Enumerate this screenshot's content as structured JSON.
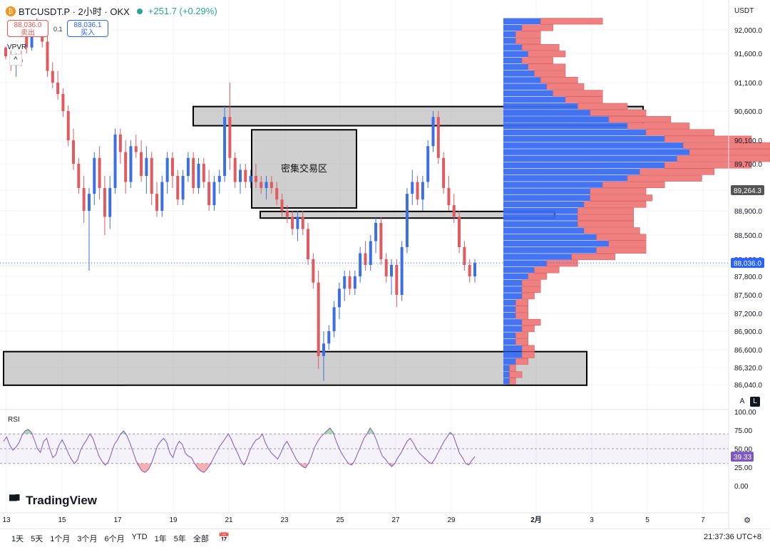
{
  "header": {
    "symbol": "BTCUSDT.P · 2小时 · OKX",
    "change": "+251.7 (+0.29%)",
    "sell_price": "88,036.0",
    "sell_label": "卖出",
    "buy_price": "88,036.1",
    "buy_label": "买入",
    "spread": "0.1",
    "indicator": "VPVR"
  },
  "axis": {
    "currency": "USDT",
    "auto_btn": "A",
    "log_btn": "L"
  },
  "bottom": {
    "ranges": [
      "1天",
      "5天",
      "1个月",
      "3个月",
      "6个月",
      "YTD",
      "1年",
      "5年",
      "全部"
    ],
    "time": "21:37:36 UTC+8"
  },
  "brand": "TradingView",
  "chart_data": {
    "type": "candlestick",
    "price_ticks": [
      92000,
      91600,
      91100,
      90600,
      90100,
      89700,
      89264.3,
      88900,
      88500,
      88100,
      87800,
      87500,
      87200,
      86900,
      86600,
      86320,
      86040
    ],
    "price_tick_labels": [
      "92,000.0",
      "91,600.0",
      "91,100.0",
      "90,600.0",
      "90,100.0",
      "89,700.0",
      "89,264.3",
      "88,900.0",
      "88,500.0",
      "88,100.0",
      "87,800.0",
      "87,500.0",
      "87,200.0",
      "86,900.0",
      "86,600.0",
      "86,320.0",
      "86,040.0"
    ],
    "current_price": 88036.0,
    "current_price_label": "88,036.0",
    "poc_price": 89264.3,
    "poc_label": "89,264.3",
    "x_labels": [
      "13",
      "15",
      "17",
      "19",
      "21",
      "23",
      "25",
      "27",
      "29",
      "2月",
      "3",
      "5",
      "7"
    ],
    "zones": [
      {
        "from": 90350,
        "to": 90680,
        "label": ""
      },
      {
        "from": 88950,
        "to": 90280,
        "label": "密集交易区"
      },
      {
        "from": 88780,
        "to": 88890,
        "label": ""
      },
      {
        "from": 86030,
        "to": 86570,
        "label": ""
      }
    ],
    "candles": [
      [
        91700,
        91720,
        91500,
        91550
      ],
      [
        91550,
        91650,
        91300,
        91400
      ],
      [
        91400,
        91600,
        91200,
        91500
      ],
      [
        91500,
        91650,
        91380,
        91450
      ],
      [
        92050,
        92070,
        91600,
        91700
      ],
      [
        91700,
        92100,
        91650,
        92000
      ],
      [
        92000,
        92200,
        91900,
        92100
      ],
      [
        92100,
        92150,
        91700,
        91800
      ],
      [
        91800,
        91900,
        91200,
        91300
      ],
      [
        91300,
        91450,
        91000,
        91100
      ],
      [
        91100,
        91300,
        90800,
        90900
      ],
      [
        90900,
        91000,
        90500,
        90600
      ],
      [
        90600,
        90700,
        90000,
        90100
      ],
      [
        90100,
        90300,
        89600,
        89700
      ],
      [
        89700,
        89800,
        89200,
        89300
      ],
      [
        89300,
        89500,
        88700,
        88900
      ],
      [
        88900,
        89300,
        87900,
        89200
      ],
      [
        89200,
        89900,
        89000,
        89800
      ],
      [
        89800,
        90000,
        89100,
        89300
      ],
      [
        89300,
        89500,
        88500,
        88800
      ],
      [
        88800,
        89500,
        88600,
        89300
      ],
      [
        89300,
        90300,
        89200,
        90200
      ],
      [
        90200,
        90300,
        89700,
        89900
      ],
      [
        89900,
        90100,
        89200,
        89400
      ],
      [
        89400,
        90100,
        89300,
        90000
      ],
      [
        90000,
        90200,
        89800,
        89900
      ],
      [
        89900,
        90100,
        89400,
        89500
      ],
      [
        89500,
        90000,
        89200,
        89800
      ],
      [
        89800,
        89900,
        89000,
        89200
      ],
      [
        89200,
        89400,
        88800,
        88900
      ],
      [
        88900,
        89500,
        88800,
        89400
      ],
      [
        89400,
        89900,
        89200,
        89800
      ],
      [
        89800,
        89900,
        89300,
        89500
      ],
      [
        89500,
        89600,
        89000,
        89100
      ],
      [
        89100,
        89600,
        89000,
        89500
      ],
      [
        89500,
        89900,
        89400,
        89800
      ],
      [
        89800,
        89900,
        89200,
        89300
      ],
      [
        89300,
        89800,
        89200,
        89700
      ],
      [
        89700,
        89800,
        89300,
        89400
      ],
      [
        89400,
        89600,
        88900,
        89000
      ],
      [
        89000,
        89500,
        88900,
        89400
      ],
      [
        89400,
        89600,
        89200,
        89500
      ],
      [
        89500,
        90700,
        89400,
        90500
      ],
      [
        90500,
        91100,
        89600,
        89800
      ],
      [
        89800,
        89900,
        89300,
        89400
      ],
      [
        89400,
        89700,
        89200,
        89600
      ],
      [
        89600,
        89700,
        89300,
        89400
      ],
      [
        89400,
        89600,
        89300,
        89500
      ],
      [
        89500,
        89700,
        89300,
        89400
      ],
      [
        89400,
        89500,
        89200,
        89300
      ],
      [
        89300,
        89500,
        89100,
        89400
      ],
      [
        89400,
        89500,
        89200,
        89300
      ],
      [
        89300,
        89400,
        89000,
        89100
      ],
      [
        89100,
        89200,
        88800,
        88900
      ],
      [
        88900,
        89000,
        88700,
        88800
      ],
      [
        88800,
        88900,
        88500,
        88600
      ],
      [
        88600,
        88900,
        88400,
        88800
      ],
      [
        88800,
        88900,
        88500,
        88600
      ],
      [
        88600,
        88700,
        88000,
        88100
      ],
      [
        88100,
        88200,
        87600,
        87700
      ],
      [
        87700,
        87900,
        86300,
        86500
      ],
      [
        86500,
        86900,
        86100,
        86700
      ],
      [
        86700,
        87000,
        86600,
        86900
      ],
      [
        86900,
        87400,
        86800,
        87300
      ],
      [
        87300,
        87700,
        87100,
        87600
      ],
      [
        87600,
        87900,
        87400,
        87800
      ],
      [
        87800,
        87900,
        87500,
        87600
      ],
      [
        87600,
        87900,
        87500,
        87800
      ],
      [
        87800,
        88300,
        87700,
        88200
      ],
      [
        88200,
        88400,
        87900,
        88000
      ],
      [
        88000,
        88500,
        87900,
        88400
      ],
      [
        88400,
        88800,
        88200,
        88700
      ],
      [
        88700,
        88800,
        88000,
        88100
      ],
      [
        88100,
        88200,
        87700,
        87800
      ],
      [
        87800,
        88100,
        87500,
        88000
      ],
      [
        88000,
        88100,
        87300,
        87500
      ],
      [
        87500,
        88400,
        87400,
        88300
      ],
      [
        88300,
        89300,
        88200,
        89200
      ],
      [
        89200,
        89600,
        89000,
        89400
      ],
      [
        89400,
        89500,
        89000,
        89100
      ],
      [
        89100,
        89500,
        88900,
        89400
      ],
      [
        89400,
        90100,
        89300,
        90000
      ],
      [
        90000,
        90600,
        89900,
        90500
      ],
      [
        90500,
        90600,
        89700,
        89800
      ],
      [
        89800,
        89900,
        89200,
        89300
      ],
      [
        89300,
        89500,
        88900,
        89000
      ],
      [
        89000,
        89200,
        88700,
        88800
      ],
      [
        88800,
        88900,
        88200,
        88300
      ],
      [
        88300,
        88400,
        87900,
        88000
      ],
      [
        88000,
        88100,
        87700,
        87800
      ],
      [
        87800,
        88100,
        87700,
        88036
      ]
    ],
    "volume_profile": {
      "price_min": 86040,
      "price_max": 92200,
      "buy": [
        0.06,
        0.03,
        0.02,
        0.02,
        0.03,
        0.04,
        0.03,
        0.04,
        0.05,
        0.06,
        0.07,
        0.08,
        0.1,
        0.12,
        0.14,
        0.17,
        0.2,
        0.23,
        0.26,
        0.29,
        0.3,
        0.28,
        0.26,
        0.22,
        0.2,
        0.16,
        0.14,
        0.14,
        0.13,
        0.12,
        0.12,
        0.12,
        0.13,
        0.15,
        0.17,
        0.15,
        0.11,
        0.07,
        0.05,
        0.04,
        0.03,
        0.03,
        0.03,
        0.02,
        0.02,
        0.02,
        0.03,
        0.03,
        0.02,
        0.02,
        0.03,
        0.03,
        0.02,
        0.01,
        0.01,
        0.01
      ],
      "sell": [
        0.1,
        0.05,
        0.04,
        0.04,
        0.06,
        0.06,
        0.05,
        0.06,
        0.05,
        0.06,
        0.06,
        0.08,
        0.06,
        0.08,
        0.09,
        0.1,
        0.1,
        0.11,
        0.14,
        0.16,
        0.17,
        0.15,
        0.14,
        0.12,
        0.12,
        0.1,
        0.09,
        0.1,
        0.1,
        0.09,
        0.09,
        0.09,
        0.09,
        0.08,
        0.06,
        0.08,
        0.07,
        0.05,
        0.04,
        0.03,
        0.03,
        0.03,
        0.02,
        0.02,
        0.02,
        0.02,
        0.03,
        0.02,
        0.02,
        0.02,
        0.02,
        0.02,
        0.02,
        0.01,
        0.02,
        0.01
      ]
    },
    "rsi": {
      "label": "RSI",
      "ticks": [
        100,
        75,
        50,
        25,
        0
      ],
      "tick_labels": [
        "100.00",
        "75.00",
        "50.00",
        "25.00",
        "0.00"
      ],
      "upper": 70,
      "lower": 30,
      "current": 39.33,
      "current_label": "39.33",
      "values": [
        60,
        66,
        55,
        48,
        52,
        58,
        68,
        74,
        76,
        72,
        62,
        50,
        45,
        60,
        64,
        50,
        38,
        42,
        55,
        62,
        54,
        44,
        36,
        30,
        35,
        48,
        56,
        62,
        70,
        64,
        52,
        40,
        33,
        28,
        32,
        44,
        56,
        62,
        70,
        74,
        68,
        58,
        46,
        34,
        26,
        20,
        18,
        22,
        30,
        42,
        54,
        60,
        64,
        58,
        44,
        38,
        52,
        60,
        56,
        44,
        40,
        38,
        30,
        24,
        20,
        18,
        22,
        28,
        36,
        44,
        52,
        58,
        64,
        70,
        62,
        52,
        44,
        34,
        28,
        36,
        48,
        56,
        62,
        64,
        70,
        58,
        50,
        44,
        40,
        36,
        44,
        54,
        60,
        52,
        44,
        36,
        30,
        26,
        24,
        30,
        40,
        52,
        60,
        66,
        70,
        74,
        78,
        72,
        60,
        50,
        42,
        36,
        30,
        28,
        34,
        44,
        54,
        64,
        70,
        78,
        72,
        62,
        50,
        40,
        36,
        30,
        26,
        30,
        38,
        44,
        52,
        60,
        64,
        58,
        50,
        44,
        40,
        36,
        32,
        30,
        36,
        44,
        52,
        60,
        66,
        72,
        68,
        56,
        44,
        38,
        30,
        28,
        34,
        39.33
      ]
    }
  }
}
